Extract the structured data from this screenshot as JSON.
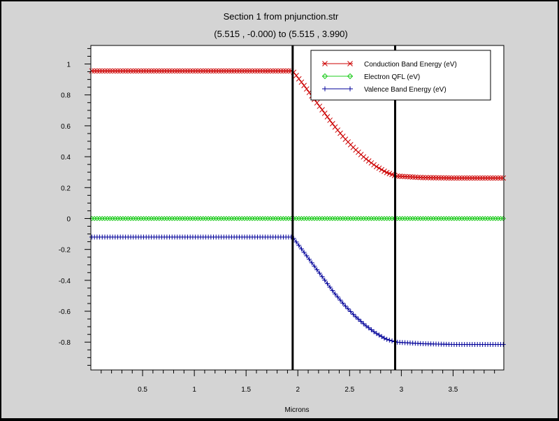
{
  "chart_data": {
    "type": "line",
    "title": "Section 1 from pnjunction.str",
    "subtitle": "(5.515 , -0.000) to (5.515 , 3.990)",
    "xlabel": "Microns",
    "ylabel": "",
    "xlim": [
      0.0,
      3.99
    ],
    "ylim": [
      -0.98,
      1.12
    ],
    "xticks": [
      0.5,
      1,
      1.5,
      2,
      2.5,
      3,
      3.5
    ],
    "xtick_labels": [
      "0.5",
      "1",
      "1.5",
      "2",
      "2.5",
      "3",
      "3.5"
    ],
    "yticks": [
      1,
      0.8,
      0.6,
      0.4,
      0.2,
      0,
      -0.2,
      -0.4,
      -0.6,
      -0.8
    ],
    "ytick_labels": [
      "1",
      "0.8",
      "0.6",
      "0.4",
      "0.2",
      "0",
      "-0.2",
      "-0.4",
      "-0.6",
      "-0.8"
    ],
    "grid": false,
    "legend_position": "top-right",
    "vertical_lines": [
      1.95,
      2.94
    ],
    "series": [
      {
        "name": "Conduction Band Energy (eV)",
        "color": "#cc0000",
        "marker": "x",
        "x": [
          0.0,
          1.95,
          2.05,
          2.15,
          2.25,
          2.35,
          2.45,
          2.55,
          2.65,
          2.75,
          2.85,
          2.95,
          3.2,
          3.5,
          3.99
        ],
        "y": [
          0.955,
          0.955,
          0.87,
          0.78,
          0.69,
          0.6,
          0.52,
          0.45,
          0.39,
          0.34,
          0.3,
          0.275,
          0.265,
          0.262,
          0.262
        ]
      },
      {
        "name": "Electron QFL (eV)",
        "color": "#22cc22",
        "marker": "diamond",
        "x": [
          0.0,
          3.99
        ],
        "y": [
          0.0,
          0.0
        ]
      },
      {
        "name": "Valence Band Energy (eV)",
        "color": "#000099",
        "marker": "+",
        "x": [
          0.0,
          1.95,
          2.05,
          2.15,
          2.25,
          2.35,
          2.45,
          2.55,
          2.65,
          2.75,
          2.85,
          2.95,
          3.2,
          3.5,
          3.99
        ],
        "y": [
          -0.12,
          -0.12,
          -0.21,
          -0.3,
          -0.39,
          -0.48,
          -0.56,
          -0.63,
          -0.69,
          -0.74,
          -0.78,
          -0.8,
          -0.81,
          -0.815,
          -0.815
        ]
      }
    ]
  }
}
